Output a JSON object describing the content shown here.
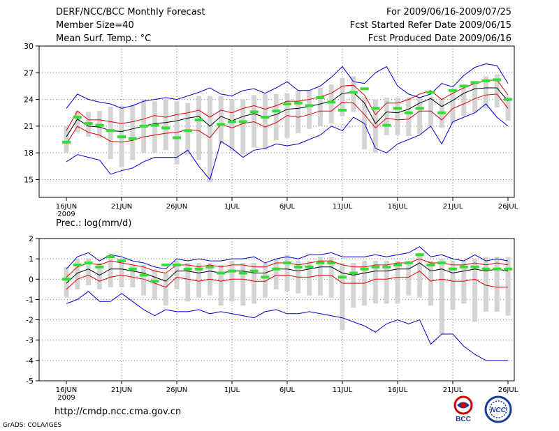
{
  "header": {
    "title": "DERF/NCC/BCC Monthly Forecast",
    "member_size": "Member Size=40",
    "variable": "Mean Surf. Temp.: °C",
    "forecast_period": "For 2009/06/16-2009/07/25",
    "started_date": "Fcst Started Refer Date 2009/06/15",
    "produced_date": "Fcst Produced Date 2009/06/16"
  },
  "footer": {
    "url": "http://cmdp.ncc.cma.gov.cn",
    "grads_label": "GrADS: COLA/IGES",
    "logo_left_text": "BCC",
    "logo_right_text": "NCC"
  },
  "colors": {
    "range": "#0000cc",
    "spread": "#dd0000",
    "mean": "#000000",
    "observed": "#33dd33",
    "box": "#d4d4d4",
    "grid": "#777777"
  },
  "chart_data": [
    {
      "type": "line",
      "title": "Mean Surf. Temp.: °C",
      "ylim": [
        13,
        30
      ],
      "yticks": [
        15,
        18,
        21,
        24,
        27,
        30
      ],
      "xlim": [
        0,
        40
      ],
      "xtick_positions": [
        0,
        5,
        10,
        15,
        20,
        25,
        30,
        35,
        40
      ],
      "xtick_labels": [
        "16JUN",
        "21JUN",
        "26JUN",
        "1JUL",
        "6JUL",
        "11JUL",
        "16JUL",
        "21JUL",
        "26JUL"
      ],
      "year_label": "2009",
      "grid": true,
      "series": [
        {
          "name": "ensemble max",
          "values": [
            23.0,
            24.6,
            24.0,
            23.7,
            23.5,
            23.0,
            23.3,
            23.8,
            24.0,
            24.2,
            24.0,
            24.4,
            24.8,
            25.3,
            24.6,
            24.4,
            25.0,
            25.2,
            24.7,
            25.3,
            26.0,
            25.0,
            25.0,
            25.5,
            26.5,
            27.7,
            26.0,
            25.8,
            27.0,
            27.7,
            25.5,
            24.6,
            24.2,
            24.6,
            25.8,
            25.4,
            26.7,
            27.6,
            28.0,
            27.8,
            25.8
          ]
        },
        {
          "name": "mean + spread",
          "values": [
            20.5,
            22.7,
            21.7,
            21.7,
            21.5,
            21.3,
            21.5,
            21.8,
            22.2,
            22.0,
            22.3,
            22.5,
            22.8,
            22.0,
            22.8,
            22.5,
            23.0,
            23.3,
            22.9,
            23.3,
            23.8,
            23.8,
            24.0,
            24.3,
            24.7,
            25.5,
            25.6,
            24.5,
            22.3,
            23.6,
            23.6,
            24.0,
            24.6,
            25.0,
            24.0,
            24.7,
            25.3,
            25.8,
            26.1,
            26.2,
            24.5
          ]
        },
        {
          "name": "ensemble mean",
          "values": [
            19.8,
            21.8,
            21.0,
            20.9,
            20.5,
            20.4,
            20.7,
            21.0,
            21.3,
            21.4,
            21.6,
            21.9,
            22.1,
            21.0,
            22.1,
            21.6,
            22.1,
            22.4,
            22.0,
            22.3,
            22.9,
            23.0,
            23.2,
            23.5,
            23.8,
            24.7,
            24.8,
            23.6,
            21.3,
            22.6,
            22.5,
            22.9,
            23.6,
            24.1,
            23.2,
            23.9,
            24.7,
            25.2,
            25.3,
            25.3,
            23.8
          ]
        },
        {
          "name": "mean - spread",
          "values": [
            19.0,
            21.0,
            20.3,
            20.0,
            19.3,
            19.2,
            19.4,
            19.8,
            20.0,
            20.2,
            20.3,
            20.6,
            20.5,
            19.7,
            21.2,
            20.8,
            21.3,
            21.5,
            20.9,
            21.4,
            22.2,
            22.0,
            22.3,
            22.7,
            22.7,
            23.7,
            23.6,
            22.3,
            20.8,
            21.9,
            21.7,
            21.8,
            22.7,
            22.7,
            21.7,
            23.0,
            23.5,
            24.1,
            24.5,
            24.6,
            23.0
          ]
        },
        {
          "name": "ensemble min",
          "values": [
            17.0,
            17.8,
            17.5,
            17.2,
            15.6,
            16.0,
            16.3,
            17.0,
            17.5,
            17.5,
            17.5,
            18.3,
            16.5,
            15.0,
            19.3,
            18.5,
            17.5,
            18.3,
            18.5,
            19.0,
            18.8,
            19.0,
            19.5,
            20.0,
            21.0,
            20.5,
            22.0,
            21.3,
            18.5,
            18.0,
            19.0,
            19.5,
            20.0,
            21.0,
            19.0,
            21.5,
            22.0,
            22.5,
            23.5,
            22.0,
            21.0
          ]
        },
        {
          "name": "observed (green)",
          "values": [
            19.2,
            22.0,
            21.3,
            21.1,
            20.5,
            19.8,
            19.6,
            21.0,
            21.1,
            20.8,
            19.7,
            20.5,
            21.7,
            null,
            21.2,
            21.5,
            21.5,
            22.6,
            22.0,
            22.7,
            23.5,
            23.6,
            23.3,
            24.2,
            23.7,
            22.8,
            24.8,
            25.2,
            23.0,
            21.1,
            23.0,
            22.5,
            23.0,
            24.8,
            22.5,
            25.0,
            25.5,
            25.9,
            26.1,
            26.2,
            24.0
          ]
        },
        {
          "name": "box upper (grey)",
          "values": [
            21.0,
            22.7,
            22.6,
            22.7,
            23.2,
            23.3,
            23.4,
            24.0,
            23.8,
            24.0,
            23.8,
            23.6,
            24.4,
            24.4,
            24.4,
            24.0,
            24.0,
            24.5,
            24.6,
            24.6,
            24.7,
            25.0,
            25.0,
            25.3,
            25.7,
            26.4,
            26.6,
            24.2,
            24.0,
            24.2,
            24.2,
            24.2,
            24.3,
            24.3,
            24.1,
            25.0,
            25.3,
            26.0,
            26.6,
            26.8,
            24.3
          ]
        },
        {
          "name": "box lower (grey)",
          "values": [
            18.0,
            20.3,
            19.8,
            19.7,
            17.3,
            16.4,
            17.2,
            18.0,
            18.0,
            18.3,
            16.7,
            17.8,
            17.2,
            14.7,
            19.0,
            18.2,
            17.8,
            18.6,
            18.4,
            19.4,
            19.7,
            20.2,
            20.7,
            21.0,
            21.3,
            22.1,
            22.6,
            18.4,
            18.0,
            20.0,
            20.0,
            19.9,
            20.1,
            21.0,
            20.8,
            21.3,
            22.1,
            22.5,
            23.0,
            23.1,
            21.6
          ]
        }
      ]
    },
    {
      "type": "line",
      "title": "Prec.: log(mm/d)",
      "ylim": [
        -5,
        2
      ],
      "yticks": [
        -5,
        -4,
        -3,
        -2,
        -1,
        0,
        1,
        2
      ],
      "xlim": [
        0,
        40
      ],
      "xtick_positions": [
        0,
        5,
        10,
        15,
        20,
        25,
        30,
        35,
        40
      ],
      "xtick_labels": [
        "16JUN",
        "21JUN",
        "26JUN",
        "1JUL",
        "6JUL",
        "11JUL",
        "16JUL",
        "21JUL",
        "26JUL"
      ],
      "year_label": "2009",
      "grid": true,
      "series": [
        {
          "name": "ensemble max",
          "values": [
            0.5,
            1.1,
            1.3,
            0.9,
            1.2,
            1.1,
            0.9,
            0.8,
            0.6,
            0.5,
            1.0,
            0.9,
            1.0,
            0.9,
            0.9,
            1.0,
            1.0,
            1.1,
            0.8,
            1.0,
            1.1,
            1.0,
            1.2,
            1.2,
            1.3,
            1.1,
            1.1,
            1.1,
            1.2,
            1.1,
            1.2,
            1.3,
            1.6,
            1.1,
            1.2,
            1.0,
            0.9,
            1.2,
            0.9,
            1.0,
            0.9
          ]
        },
        {
          "name": "mean + spread",
          "values": [
            0.1,
            0.6,
            0.8,
            0.7,
            0.9,
            0.8,
            0.7,
            0.6,
            0.4,
            0.3,
            0.7,
            0.7,
            0.6,
            0.7,
            0.6,
            0.7,
            0.7,
            0.6,
            0.6,
            0.8,
            0.8,
            0.7,
            0.8,
            0.9,
            0.9,
            0.7,
            0.6,
            0.6,
            0.7,
            0.7,
            0.8,
            0.8,
            1.0,
            0.8,
            0.8,
            0.7,
            0.7,
            0.8,
            0.7,
            0.8,
            0.7
          ]
        },
        {
          "name": "ensemble mean",
          "values": [
            -0.2,
            0.3,
            0.5,
            0.2,
            0.5,
            0.5,
            0.4,
            0.3,
            0.1,
            -0.1,
            0.4,
            0.4,
            0.3,
            0.4,
            0.3,
            0.4,
            0.4,
            0.3,
            0.3,
            0.5,
            0.5,
            0.4,
            0.5,
            0.6,
            0.6,
            0.3,
            0.2,
            0.3,
            0.4,
            0.4,
            0.5,
            0.5,
            0.8,
            0.4,
            0.5,
            0.3,
            0.4,
            0.5,
            0.4,
            0.5,
            0.4
          ]
        },
        {
          "name": "mean - spread",
          "values": [
            -0.5,
            0.0,
            0.2,
            -0.1,
            0.1,
            0.2,
            0.1,
            0.0,
            -0.2,
            -0.4,
            0.1,
            0.0,
            -0.1,
            0.0,
            -0.1,
            0.0,
            0.0,
            -0.1,
            -0.1,
            0.2,
            0.2,
            0.1,
            0.1,
            0.2,
            0.2,
            -0.2,
            -0.2,
            -0.2,
            0.0,
            0.0,
            0.1,
            0.1,
            0.4,
            -0.1,
            0.0,
            -0.1,
            -0.1,
            0.0,
            -0.3,
            -0.4,
            -0.4
          ]
        },
        {
          "name": "ensemble min",
          "values": [
            -1.2,
            -1.0,
            -0.6,
            -1.1,
            -1.1,
            -0.7,
            -1.1,
            -1.5,
            -1.8,
            -1.5,
            -1.6,
            -1.6,
            -1.5,
            -1.7,
            -1.6,
            -1.7,
            -1.8,
            -1.9,
            -1.6,
            -1.5,
            -1.7,
            -1.7,
            -1.6,
            -1.7,
            -1.8,
            -1.9,
            -2.1,
            -2.3,
            -2.6,
            -2.2,
            -2.0,
            -2.2,
            -2.0,
            -3.2,
            -2.7,
            -2.7,
            -3.3,
            -3.7,
            -4.0,
            -4.0,
            -4.0
          ]
        },
        {
          "name": "observed (green)",
          "values": [
            0.0,
            0.7,
            0.8,
            0.6,
            1.1,
            0.9,
            0.5,
            0.2,
            -0.1,
            0.7,
            0.7,
            0.5,
            0.5,
            0.6,
            0.3,
            0.4,
            0.3,
            0.4,
            0.1,
            0.5,
            0.8,
            0.6,
            0.6,
            0.8,
            0.8,
            0.1,
            0.3,
            0.5,
            0.6,
            0.6,
            0.7,
            0.8,
            1.2,
            0.7,
            0.8,
            0.5,
            0.6,
            0.6,
            0.5,
            0.5,
            0.5
          ]
        },
        {
          "name": "box upper (grey)",
          "values": [
            0.6,
            1.0,
            1.0,
            0.8,
            1.0,
            1.0,
            0.7,
            0.7,
            0.5,
            0.3,
            0.9,
            0.8,
            0.8,
            0.8,
            0.7,
            0.9,
            0.8,
            0.8,
            0.8,
            1.0,
            1.2,
            0.9,
            0.9,
            1.1,
            1.1,
            0.8,
            0.8,
            0.9,
            0.9,
            0.9,
            0.9,
            0.9,
            1.3,
            0.9,
            1.0,
            0.9,
            0.9,
            1.0,
            1.1,
            1.1,
            1.1
          ]
        },
        {
          "name": "box lower (grey)",
          "values": [
            -0.9,
            -0.5,
            -0.3,
            -0.5,
            -0.4,
            -0.4,
            -0.4,
            -0.8,
            -1.0,
            -1.3,
            -0.5,
            -1.1,
            -0.9,
            -0.8,
            -1.3,
            -1.1,
            -1.3,
            -1.2,
            -0.9,
            -0.5,
            -0.6,
            -0.7,
            -0.8,
            -0.8,
            -0.9,
            -2.5,
            -1.4,
            -1.3,
            -1.2,
            -1.2,
            -1.2,
            -0.8,
            -0.9,
            -1.3,
            -2.7,
            -1.5,
            -1.2,
            -2.1,
            -1.6,
            -1.6,
            -1.8
          ]
        }
      ]
    }
  ]
}
